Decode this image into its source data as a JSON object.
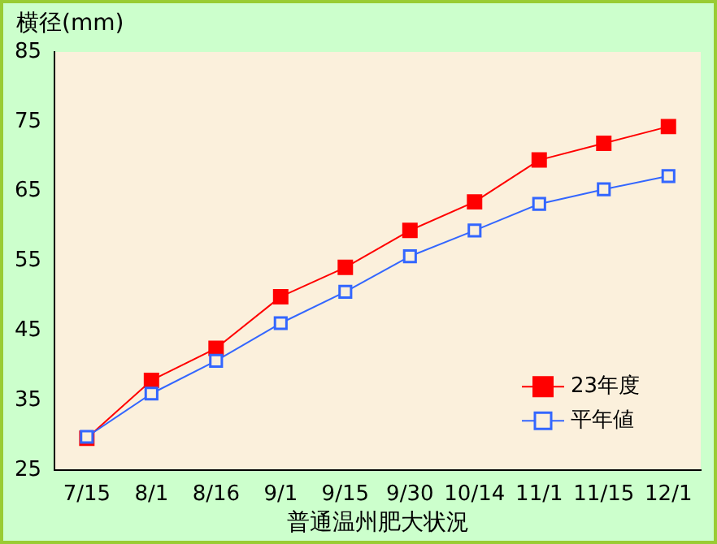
{
  "chart_data": {
    "type": "line",
    "ylabel": "横径(mm)",
    "xlabel": "普通温州肥大状況",
    "categories": [
      "7/15",
      "8/1",
      "8/16",
      "9/1",
      "9/15",
      "9/30",
      "10/14",
      "11/1",
      "11/15",
      "12/1"
    ],
    "series": [
      {
        "name": "23年度",
        "color": "#ff0000",
        "marker": "square",
        "values": [
          29.6,
          37.9,
          42.5,
          49.9,
          54.1,
          59.4,
          63.5,
          69.5,
          71.9,
          74.3
        ]
      },
      {
        "name": "平年値",
        "color": "#3366ff",
        "marker": "square",
        "values": [
          29.8,
          36.0,
          40.7,
          46.1,
          50.6,
          55.7,
          59.4,
          63.2,
          65.3,
          67.2
        ]
      }
    ],
    "ylim": [
      25,
      85
    ],
    "yticks": [
      25,
      35,
      45,
      55,
      65,
      75,
      85
    ],
    "grid": false,
    "legend": "bottom right"
  }
}
